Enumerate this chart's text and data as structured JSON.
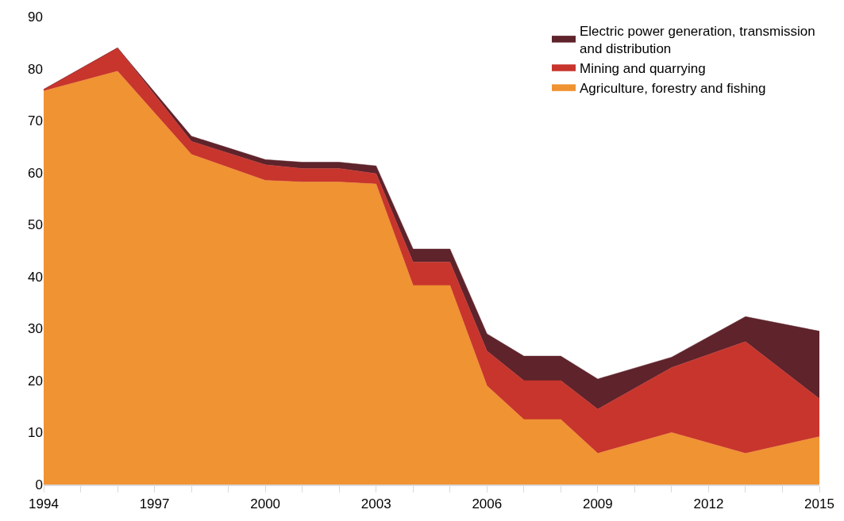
{
  "chart_data": {
    "type": "area",
    "stacked": true,
    "x": [
      1994,
      1996,
      1998,
      2000,
      2001,
      2002,
      2003,
      2004,
      2005,
      2006,
      2007,
      2008,
      2009,
      2011,
      2013,
      2015
    ],
    "series": [
      {
        "name": "Agriculture, forestry and fishing",
        "color": "#f09333",
        "values": [
          75.7,
          79.5,
          63.5,
          58.5,
          58.2,
          58.2,
          57.8,
          38.3,
          38.3,
          19,
          12.5,
          12.5,
          6,
          10,
          6,
          9.2
        ]
      },
      {
        "name": "Mining and quarrying",
        "color": "#c8352d",
        "values": [
          0.3,
          4.5,
          2.5,
          3,
          2.6,
          2.6,
          2,
          4.5,
          4.5,
          6.7,
          7.5,
          7.5,
          8.5,
          12.5,
          21.5,
          7.3
        ]
      },
      {
        "name": "Electric power generation, transmission and distribution",
        "color": "#5e232b",
        "values": [
          0,
          0,
          1,
          1,
          1.2,
          1.2,
          1.5,
          2.5,
          2.5,
          3.3,
          4.7,
          4.7,
          5.8,
          2,
          4.8,
          13
        ]
      }
    ],
    "xlim": [
      1994,
      2015
    ],
    "xticks": [
      1994,
      {
        "value": 1995,
        "label": null
      },
      {
        "value": 1996,
        "label": null
      },
      1997,
      {
        "value": 1998,
        "label": null
      },
      {
        "value": 1999,
        "label": null
      },
      2000,
      {
        "value": 2001,
        "label": null
      },
      {
        "value": 2002,
        "label": null
      },
      2003,
      {
        "value": 2004,
        "label": null
      },
      {
        "value": 2005,
        "label": null
      },
      2006,
      {
        "value": 2007,
        "label": null
      },
      {
        "value": 2008,
        "label": null
      },
      2009,
      {
        "value": 2010,
        "label": null
      },
      {
        "value": 2011,
        "label": null
      },
      2012,
      {
        "value": 2013,
        "label": null
      },
      {
        "value": 2014,
        "label": null
      },
      2015
    ],
    "ylim": [
      0,
      90
    ],
    "yticks": [
      0,
      10,
      20,
      30,
      40,
      50,
      60,
      70,
      80,
      90
    ],
    "legend": "top right"
  }
}
